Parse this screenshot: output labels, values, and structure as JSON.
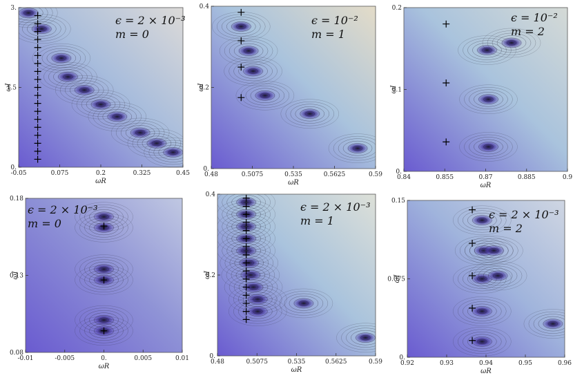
{
  "chart_data": [
    {
      "type": "heatmap",
      "title": "",
      "annotation_lines": [
        "ϵ = 2 × 10⁻³",
        "m = 0"
      ],
      "xlabel": "ωR",
      "ylabel": "ωI",
      "xlim": [
        -0.05,
        0.45
      ],
      "ylim": [
        0,
        3
      ],
      "xticks": [
        -0.05,
        0.075,
        0.2,
        0.325,
        0.45
      ],
      "xtick_labels": [
        "-0.05",
        "0.075",
        "0.2",
        "0.325",
        "0.45"
      ],
      "yticks": [
        0,
        1.5,
        3
      ],
      "ytick_labels": [
        "0.",
        "1.5",
        "3."
      ],
      "palette": [
        "#6a5bd0",
        "#a7bcdc",
        "#dcdad8"
      ],
      "poles": [
        [
          0.02,
          2.6
        ],
        [
          0.08,
          2.05
        ],
        [
          0.1,
          1.7
        ],
        [
          0.15,
          1.45
        ],
        [
          0.2,
          1.18
        ],
        [
          0.25,
          0.95
        ],
        [
          0.32,
          0.65
        ],
        [
          0.37,
          0.45
        ],
        [
          0.42,
          0.28
        ],
        [
          -0.02,
          2.9
        ]
      ],
      "crosses": [
        [
          0.008,
          0.15
        ],
        [
          0.008,
          0.3
        ],
        [
          0.008,
          0.45
        ],
        [
          0.008,
          0.6
        ],
        [
          0.008,
          0.75
        ],
        [
          0.008,
          0.9
        ],
        [
          0.008,
          1.05
        ],
        [
          0.008,
          1.2
        ],
        [
          0.008,
          1.35
        ],
        [
          0.008,
          1.5
        ],
        [
          0.008,
          1.65
        ],
        [
          0.008,
          1.8
        ],
        [
          0.008,
          1.95
        ],
        [
          0.008,
          2.1
        ],
        [
          0.008,
          2.25
        ],
        [
          0.008,
          2.4
        ],
        [
          0.008,
          2.55
        ],
        [
          0.008,
          2.7
        ],
        [
          0.008,
          2.85
        ]
      ]
    },
    {
      "type": "heatmap",
      "title": "",
      "annotation_lines": [
        "ϵ = 10⁻²",
        "m = 1"
      ],
      "xlabel": "ωR",
      "ylabel": "ωI",
      "xlim": [
        0.48,
        0.59
      ],
      "ylim": [
        0,
        0.4
      ],
      "xticks": [
        0.48,
        0.5075,
        0.535,
        0.5625,
        0.59
      ],
      "xtick_labels": [
        "0.48",
        "0.5075",
        "0.535",
        "0.5625",
        "0.59"
      ],
      "yticks": [
        0,
        0.2,
        0.4
      ],
      "ytick_labels": [
        "0.",
        "0.2",
        "0.4"
      ],
      "palette": [
        "#6a5bd0",
        "#a9c3dd",
        "#e4dcc8"
      ],
      "poles": [
        [
          0.5,
          0.35
        ],
        [
          0.505,
          0.29
        ],
        [
          0.508,
          0.24
        ],
        [
          0.516,
          0.18
        ],
        [
          0.546,
          0.135
        ],
        [
          0.578,
          0.05
        ]
      ],
      "crosses": [
        [
          0.5,
          0.385
        ],
        [
          0.5,
          0.315
        ],
        [
          0.5,
          0.25
        ],
        [
          0.5,
          0.175
        ]
      ]
    },
    {
      "type": "heatmap",
      "title": "",
      "annotation_lines": [
        "ϵ = 10⁻²",
        "m = 2"
      ],
      "xlabel": "ωR",
      "ylabel": "ωI",
      "xlim": [
        0.84,
        0.9
      ],
      "ylim": [
        0,
        0.2
      ],
      "xticks": [
        0.84,
        0.855,
        0.87,
        0.885,
        0.9
      ],
      "xtick_labels": [
        "0.84",
        "0.855",
        "0.87",
        "0.885",
        "0.9"
      ],
      "yticks": [
        0,
        0.1,
        0.2
      ],
      "ytick_labels": [
        "0.",
        "0.1",
        "0.2"
      ],
      "palette": [
        "#6a5bd0",
        "#a9c3dd",
        "#d5dad6"
      ],
      "poles": [
        [
          0.8705,
          0.148
        ],
        [
          0.8795,
          0.157
        ],
        [
          0.871,
          0.088
        ],
        [
          0.871,
          0.03
        ]
      ],
      "crosses": [
        [
          0.8555,
          0.18
        ],
        [
          0.8555,
          0.108
        ],
        [
          0.8555,
          0.036
        ]
      ]
    },
    {
      "type": "heatmap",
      "title": "",
      "annotation_lines": [
        "ϵ = 2 × 10⁻³",
        "m = 0"
      ],
      "xlabel": "ωR",
      "ylabel": "ωI",
      "xlim": [
        -0.01,
        0.01
      ],
      "ylim": [
        0.08,
        0.18
      ],
      "xticks": [
        -0.01,
        -0.005,
        0,
        0.005,
        0.01
      ],
      "xtick_labels": [
        "-0.01",
        "-0.005",
        "0.",
        "0.005",
        "0.01"
      ],
      "yticks": [
        0.08,
        0.13,
        0.18
      ],
      "ytick_labels": [
        "0.08",
        "0.13",
        "0.18"
      ],
      "palette": [
        "#6a5bd0",
        "#8f93d6",
        "#c0c8e2"
      ],
      "poles": [
        [
          0,
          0.168
        ],
        [
          0,
          0.161
        ],
        [
          0,
          0.134
        ],
        [
          0,
          0.127
        ],
        [
          0,
          0.101
        ],
        [
          0,
          0.094
        ]
      ],
      "crosses": [
        [
          0,
          0.162
        ],
        [
          0,
          0.127
        ],
        [
          0,
          0.094
        ]
      ]
    },
    {
      "type": "heatmap",
      "title": "",
      "annotation_lines": [
        "ϵ = 2 × 10⁻³",
        "m = 1"
      ],
      "xlabel": "ωR",
      "ylabel": "ωI",
      "xlim": [
        0.48,
        0.59
      ],
      "ylim": [
        0,
        0.4
      ],
      "xticks": [
        0.48,
        0.5075,
        0.535,
        0.5625,
        0.59
      ],
      "xtick_labels": [
        "0.48",
        "0.5075",
        "0.535",
        "0.5625",
        "0.59"
      ],
      "yticks": [
        0,
        0.2,
        0.4
      ],
      "ytick_labels": [
        "0.",
        "0.2",
        "0.4"
      ],
      "palette": [
        "#6a5bd0",
        "#a9c3dd",
        "#dde0d8"
      ],
      "poles": [
        [
          0.5,
          0.38
        ],
        [
          0.5,
          0.35
        ],
        [
          0.5,
          0.32
        ],
        [
          0.5,
          0.29
        ],
        [
          0.5,
          0.26
        ],
        [
          0.502,
          0.23
        ],
        [
          0.503,
          0.2
        ],
        [
          0.505,
          0.17
        ],
        [
          0.508,
          0.14
        ],
        [
          0.508,
          0.11
        ],
        [
          0.54,
          0.13
        ],
        [
          0.583,
          0.045
        ]
      ],
      "crosses": [
        [
          0.5,
          0.39
        ],
        [
          0.5,
          0.37
        ],
        [
          0.5,
          0.35
        ],
        [
          0.5,
          0.33
        ],
        [
          0.5,
          0.31
        ],
        [
          0.5,
          0.29
        ],
        [
          0.5,
          0.27
        ],
        [
          0.5,
          0.25
        ],
        [
          0.5,
          0.23
        ],
        [
          0.5,
          0.21
        ],
        [
          0.5,
          0.19
        ],
        [
          0.5,
          0.17
        ],
        [
          0.5,
          0.15
        ],
        [
          0.5,
          0.13
        ],
        [
          0.5,
          0.11
        ],
        [
          0.5,
          0.09
        ]
      ]
    },
    {
      "type": "heatmap",
      "title": "",
      "annotation_lines": [
        "ϵ = 2 × 10⁻³",
        "m = 2"
      ],
      "xlabel": "ωR",
      "ylabel": "ωI",
      "xlim": [
        0.92,
        0.96
      ],
      "ylim": [
        0,
        0.15
      ],
      "xticks": [
        0.92,
        0.93,
        0.94,
        0.95,
        0.96
      ],
      "xtick_labels": [
        "0.92",
        "0.93",
        "0.94",
        "0.95",
        "0.96"
      ],
      "yticks": [
        0,
        0.075,
        0.15
      ],
      "ytick_labels": [
        "0.",
        "0.075",
        "0.15"
      ],
      "palette": [
        "#6a5bd0",
        "#a0b4dc",
        "#cfd6e2"
      ],
      "poles": [
        [
          0.939,
          0.131
        ],
        [
          0.9395,
          0.102
        ],
        [
          0.942,
          0.102
        ],
        [
          0.939,
          0.075
        ],
        [
          0.943,
          0.078
        ],
        [
          0.939,
          0.044
        ],
        [
          0.939,
          0.015
        ],
        [
          0.957,
          0.032
        ]
      ],
      "crosses": [
        [
          0.9365,
          0.141
        ],
        [
          0.9365,
          0.109
        ],
        [
          0.9365,
          0.078
        ],
        [
          0.9365,
          0.047
        ],
        [
          0.9365,
          0.016
        ]
      ]
    }
  ]
}
